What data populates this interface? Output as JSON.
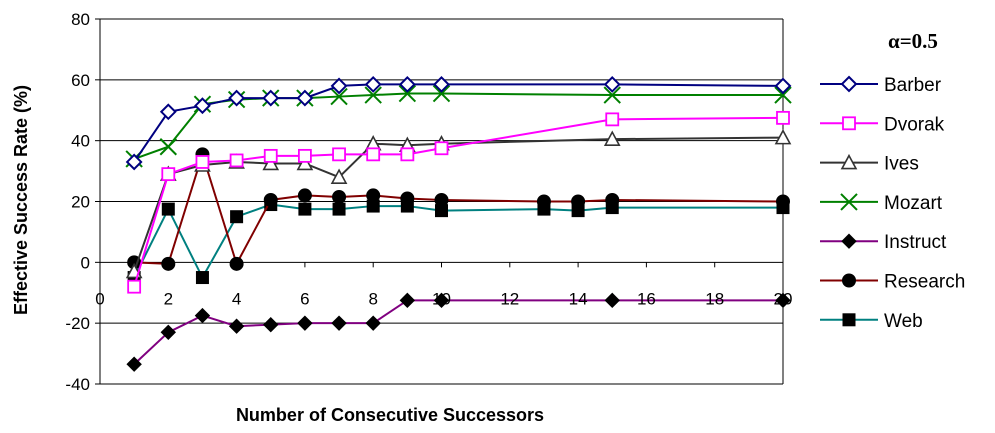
{
  "chart_data": {
    "type": "line",
    "title": "",
    "annotation": "α=0.5",
    "xlabel": "Number of Consecutive Successors",
    "ylabel": "Effective Success Rate (%)",
    "xlim": [
      0,
      20
    ],
    "ylim": [
      -40,
      80
    ],
    "xticks": [
      0,
      2,
      4,
      6,
      8,
      10,
      12,
      14,
      16,
      18,
      20
    ],
    "yticks": [
      -40,
      -20,
      0,
      20,
      40,
      60,
      80
    ],
    "grid": "horizontal",
    "legend_position": "right",
    "series": [
      {
        "name": "Barber",
        "color": "#000080",
        "marker": "diamond-open",
        "x": [
          1,
          2,
          3,
          4,
          5,
          6,
          7,
          8,
          9,
          10,
          15,
          20
        ],
        "y": [
          33,
          49.5,
          51.5,
          54,
          54,
          54,
          58,
          58.5,
          58.5,
          58.5,
          58.5,
          58
        ]
      },
      {
        "name": "Dvorak",
        "color": "#ff00ff",
        "marker": "square-open",
        "x": [
          1,
          2,
          3,
          4,
          5,
          6,
          7,
          8,
          9,
          10,
          15,
          20
        ],
        "y": [
          -8,
          29,
          33,
          33.5,
          35,
          35,
          35.5,
          35.5,
          35.5,
          37.5,
          47,
          47.5
        ]
      },
      {
        "name": "Ives",
        "color": "#333333",
        "marker": "triangle-open",
        "x": [
          1,
          2,
          3,
          4,
          5,
          6,
          7,
          8,
          9,
          10,
          15,
          20
        ],
        "y": [
          -3,
          29,
          32,
          33,
          32.5,
          32.5,
          28,
          39,
          38.5,
          39,
          40.5,
          41
        ]
      },
      {
        "name": "Mozart",
        "color": "#008000",
        "marker": "x",
        "x": [
          1,
          2,
          3,
          4,
          5,
          6,
          7,
          8,
          9,
          10,
          15,
          20
        ],
        "y": [
          34,
          38,
          52,
          53.5,
          54,
          54,
          54.5,
          55,
          55.5,
          55.5,
          55,
          55
        ]
      },
      {
        "name": "Instruct",
        "color": "#800080",
        "marker": "diamond-filled",
        "x": [
          1,
          2,
          3,
          4,
          5,
          6,
          7,
          8,
          9,
          10,
          15,
          20
        ],
        "y": [
          -33.5,
          -23,
          -17.5,
          -21,
          -20.5,
          -20,
          -20,
          -20,
          -12.5,
          -12.5,
          -12.5,
          -12.5
        ]
      },
      {
        "name": "Research",
        "color": "#800000",
        "marker": "circle-filled",
        "x": [
          1,
          2,
          3,
          4,
          5,
          6,
          7,
          8,
          9,
          10,
          13,
          14,
          15,
          20
        ],
        "y": [
          0,
          -0.5,
          35.5,
          -0.5,
          20.5,
          22,
          21.5,
          22,
          21,
          20.5,
          20,
          20,
          20.5,
          20
        ]
      },
      {
        "name": "Web",
        "color": "#008080",
        "marker": "square-filled",
        "x": [
          1,
          2,
          3,
          4,
          5,
          6,
          7,
          8,
          9,
          10,
          13,
          14,
          15,
          20
        ],
        "y": [
          -5,
          17.5,
          -5,
          15,
          19,
          17.5,
          17.5,
          18.5,
          18.5,
          17,
          17.5,
          17,
          18,
          18
        ]
      }
    ]
  }
}
